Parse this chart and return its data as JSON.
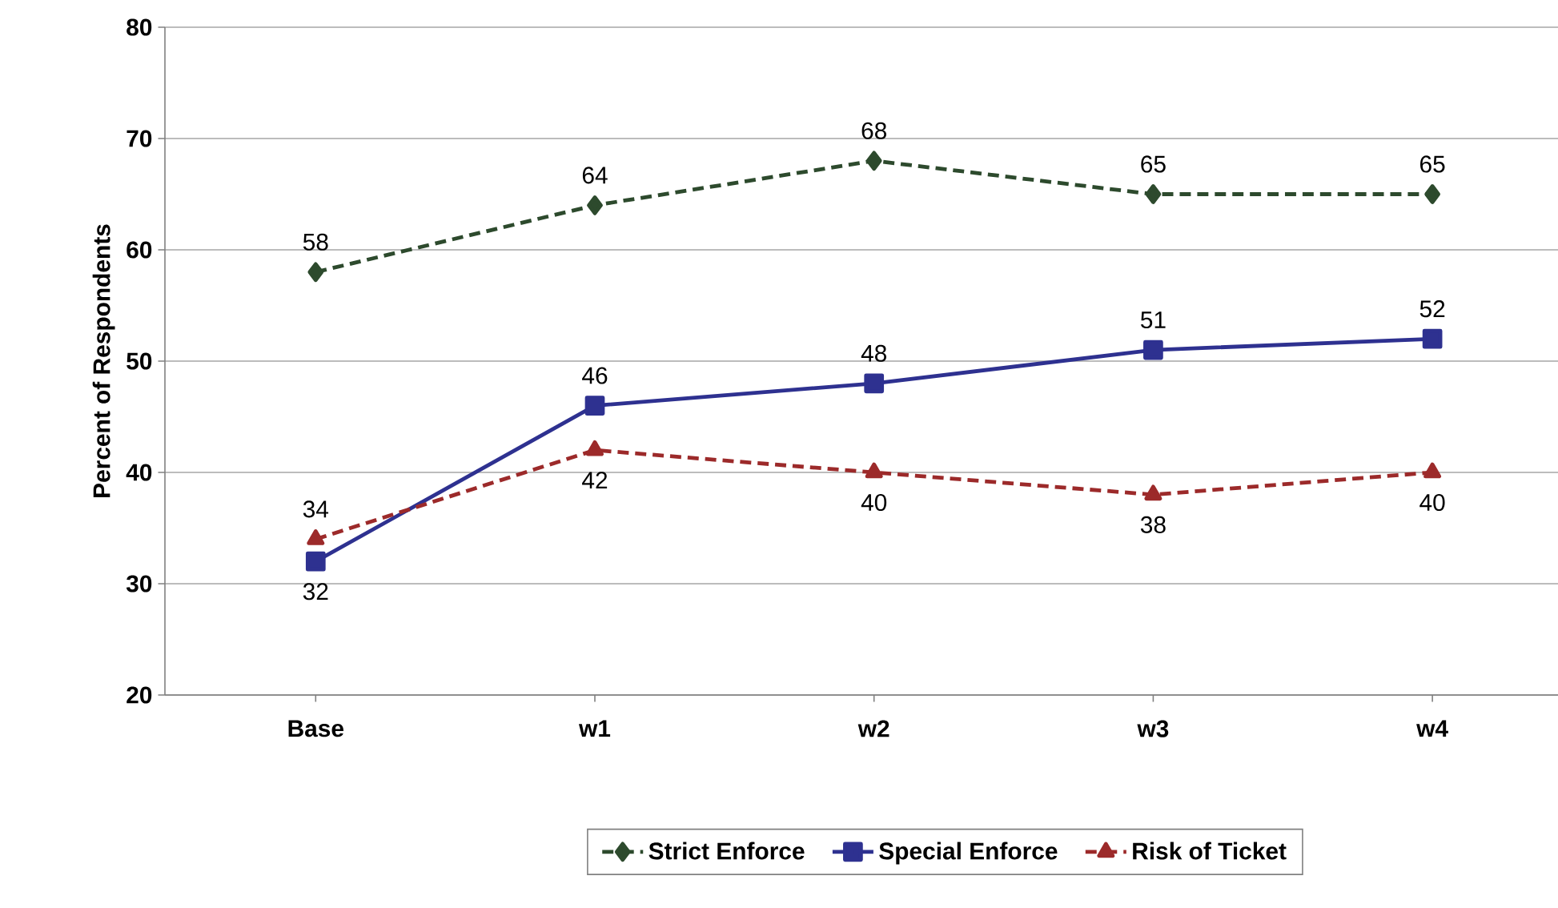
{
  "chart_data": {
    "type": "line",
    "ylabel": "Percent of Respondents",
    "categories": [
      "Base",
      "w1",
      "w2",
      "w3",
      "w4"
    ],
    "series": [
      {
        "name": "Strict Enforce",
        "color": "#2d4a2d",
        "values": [
          58,
          64,
          68,
          65,
          65
        ],
        "marker": "diamond",
        "line_style": "dashed"
      },
      {
        "name": "Special Enforce",
        "color": "#2e3190",
        "values": [
          32,
          46,
          48,
          51,
          52
        ],
        "marker": "square",
        "line_style": "solid"
      },
      {
        "name": "Risk of Ticket",
        "color": "#9c2a2a",
        "values": [
          34,
          42,
          40,
          38,
          40
        ],
        "marker": "triangle",
        "line_style": "dashed"
      }
    ],
    "ylim": [
      20,
      80
    ],
    "yticks": [
      20,
      30,
      40,
      50,
      60,
      70,
      80
    ],
    "grid": "y",
    "legend": "bottom",
    "data_labels": true
  }
}
